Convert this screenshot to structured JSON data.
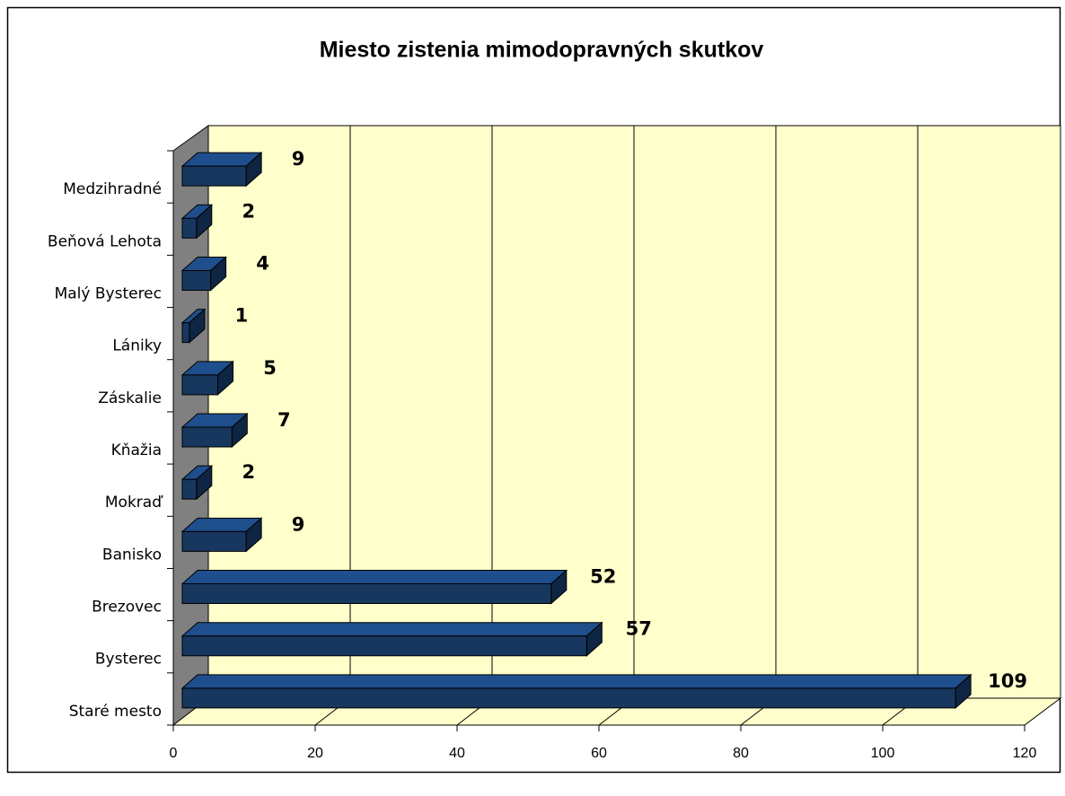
{
  "chart_data": {
    "type": "bar3d-horizontal",
    "title": "Miesto zistenia mimodopravných skutkov",
    "categories": [
      "Staré mesto",
      "Bysterec",
      "Brezovec",
      "Banisko",
      "Mokraď",
      "Kňažia",
      "Záskalie",
      "Lániky",
      "Malý Bysterec",
      "Beňová Lehota",
      "Medzihradné"
    ],
    "values": [
      109,
      57,
      52,
      9,
      2,
      7,
      5,
      1,
      4,
      2,
      9
    ],
    "color": "#17375e",
    "xlim": [
      0,
      120
    ],
    "xticks": [
      0,
      20,
      40,
      60,
      80,
      100,
      120
    ],
    "grid": true
  }
}
